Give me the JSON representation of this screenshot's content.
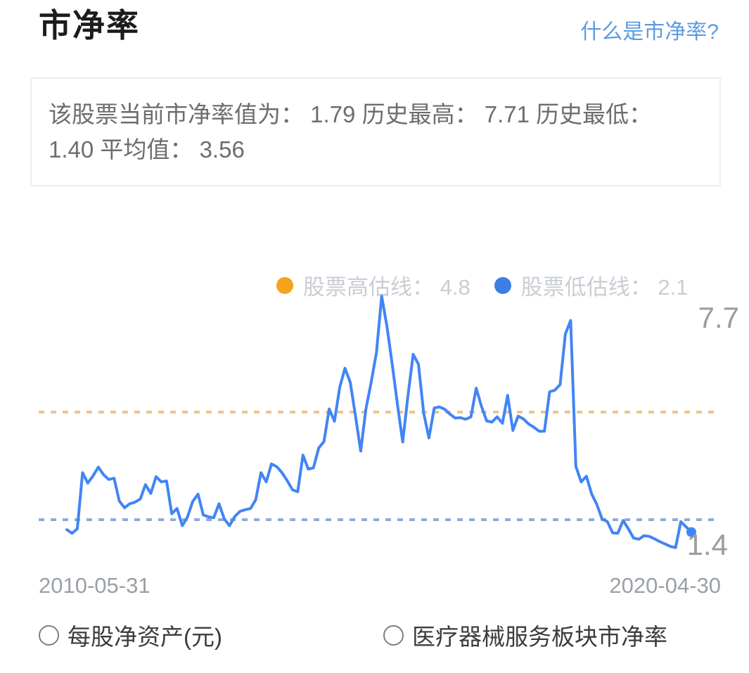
{
  "header": {
    "title": "市净率",
    "help_link": "什么是市净率?"
  },
  "summary": {
    "text": "该股票当前市净率值为： 1.79 历史最高： 7.71 历史最低： 1.40 平均值： 3.56",
    "current": "1.79",
    "historical_high": "7.71",
    "historical_low": "1.40",
    "average": "3.56"
  },
  "colors": {
    "accent_link": "#5b9ce0",
    "line": "#4285F4",
    "overvalued_dot": "#F5A21D",
    "overvalued_dash": "#F3C387",
    "undervalued_dot": "#3C7EE5",
    "undervalued_dash": "#92ABD6",
    "label_gray": "#9c9c9c"
  },
  "chart_data": {
    "type": "line",
    "title": "市净率",
    "x_axis": {
      "start": "2010-05-31",
      "end": "2020-04-30"
    },
    "x_start_label": "2010-05-31",
    "x_end_label": "2020-04-30",
    "ylim": [
      1.0,
      8.2
    ],
    "grid": false,
    "legend_position": "top",
    "legend": [
      {
        "name": "股票高估线： 4.8",
        "value": 4.8,
        "color": "#F5A21D",
        "line_color": "#F3C387",
        "style": "dashed"
      },
      {
        "name": "股票低估线： 2.1",
        "value": 2.1,
        "color": "#3C7EE5",
        "line_color": "#92ABD6",
        "style": "dashed"
      }
    ],
    "annotations": {
      "high_label": "7.7",
      "low_label": "1.4"
    },
    "series": [
      {
        "label": "",
        "color": "#4285F4",
        "end_marker": true,
        "values": [
          1.85,
          1.76,
          1.87,
          3.28,
          3.02,
          3.2,
          3.42,
          3.23,
          3.11,
          3.14,
          2.57,
          2.4,
          2.5,
          2.54,
          2.62,
          2.98,
          2.76,
          3.18,
          3.05,
          3.07,
          2.25,
          2.38,
          1.95,
          2.17,
          2.56,
          2.74,
          2.22,
          2.17,
          2.15,
          2.5,
          2.12,
          1.95,
          2.18,
          2.31,
          2.35,
          2.38,
          2.6,
          3.28,
          3.05,
          3.5,
          3.43,
          3.28,
          3.08,
          2.85,
          2.8,
          3.72,
          3.37,
          3.4,
          3.9,
          4.06,
          4.88,
          4.57,
          5.42,
          5.9,
          5.55,
          4.71,
          3.82,
          4.88,
          5.55,
          6.3,
          7.71,
          6.95,
          6.0,
          5.0,
          4.05,
          5.2,
          6.25,
          6.0,
          4.78,
          4.15,
          4.9,
          4.93,
          4.87,
          4.75,
          4.65,
          4.66,
          4.62,
          4.68,
          5.4,
          4.95,
          4.58,
          4.55,
          4.68,
          4.52,
          5.22,
          4.34,
          4.7,
          4.63,
          4.5,
          4.42,
          4.32,
          4.32,
          5.31,
          5.35,
          5.49,
          6.76,
          7.1,
          3.44,
          3.05,
          3.19,
          2.75,
          2.48,
          2.12,
          2.05,
          1.77,
          1.76,
          2.08,
          1.87,
          1.64,
          1.61,
          1.7,
          1.68,
          1.62,
          1.55,
          1.49,
          1.43,
          1.4,
          2.05,
          1.92,
          1.79
        ]
      }
    ]
  },
  "footer": {
    "options": [
      {
        "label": "每股净资产(元)",
        "checked": false
      },
      {
        "label": "医疗器械服务板块市净率",
        "checked": false
      }
    ]
  }
}
